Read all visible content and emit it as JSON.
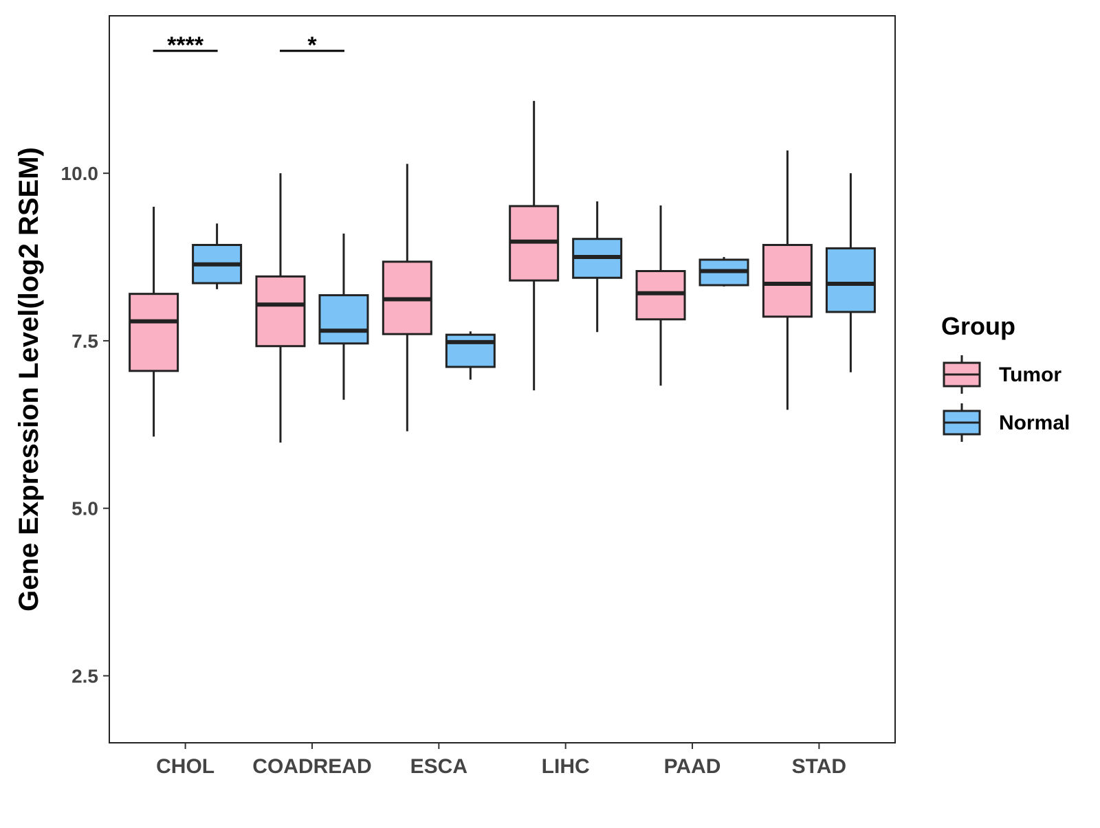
{
  "chart_data": {
    "type": "boxplot",
    "ylabel": "Gene Expression Level(log2 RSEM)",
    "xlabel": "",
    "ylim": [
      1.5,
      12.35
    ],
    "yticks": [
      2.5,
      5.0,
      7.5,
      10.0
    ],
    "ytick_labels": [
      "2.5",
      "5.0",
      "7.5",
      "10.0"
    ],
    "categories": [
      "CHOL",
      "COADREAD",
      "ESCA",
      "LIHC",
      "PAAD",
      "STAD"
    ],
    "legend": {
      "title": "Group",
      "position": "right",
      "entries": [
        {
          "name": "Tumor",
          "color": "#FBB1C4"
        },
        {
          "name": "Normal",
          "color": "#7BC3F6"
        }
      ]
    },
    "series": [
      {
        "name": "Tumor",
        "color": "#FBB1C4",
        "boxes": [
          {
            "min": 6.07,
            "q1": 7.05,
            "median": 7.79,
            "q3": 8.2,
            "max": 9.5
          },
          {
            "min": 5.98,
            "q1": 7.42,
            "median": 8.04,
            "q3": 8.46,
            "max": 10.0
          },
          {
            "min": 6.15,
            "q1": 7.6,
            "median": 8.12,
            "q3": 8.68,
            "max": 10.14
          },
          {
            "min": 6.76,
            "q1": 8.4,
            "median": 8.98,
            "q3": 9.51,
            "max": 11.08
          },
          {
            "min": 6.83,
            "q1": 7.82,
            "median": 8.21,
            "q3": 8.54,
            "max": 9.52
          },
          {
            "min": 6.47,
            "q1": 7.86,
            "median": 8.35,
            "q3": 8.93,
            "max": 10.34
          }
        ]
      },
      {
        "name": "Normal",
        "color": "#7BC3F6",
        "boxes": [
          {
            "min": 8.27,
            "q1": 8.36,
            "median": 8.64,
            "q3": 8.93,
            "max": 9.25
          },
          {
            "min": 6.62,
            "q1": 7.46,
            "median": 7.65,
            "q3": 8.18,
            "max": 9.1
          },
          {
            "min": 6.92,
            "q1": 7.11,
            "median": 7.48,
            "q3": 7.59,
            "max": 7.64
          },
          {
            "min": 7.63,
            "q1": 8.44,
            "median": 8.75,
            "q3": 9.02,
            "max": 9.58
          },
          {
            "min": 8.31,
            "q1": 8.33,
            "median": 8.54,
            "q3": 8.71,
            "max": 8.75
          },
          {
            "min": 7.03,
            "q1": 7.93,
            "median": 8.35,
            "q3": 8.88,
            "max": 10.0
          }
        ]
      }
    ],
    "significance": [
      {
        "category": "CHOL",
        "label": "****"
      },
      {
        "category": "COADREAD",
        "label": "*"
      }
    ]
  }
}
